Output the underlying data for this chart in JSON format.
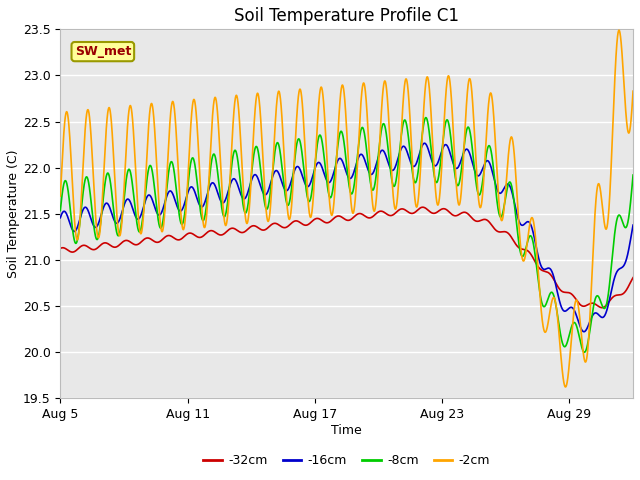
{
  "title": "Soil Temperature Profile C1",
  "xlabel": "Time",
  "ylabel": "Soil Temperature (C)",
  "ylim": [
    19.5,
    23.5
  ],
  "xlim_days": [
    0,
    27
  ],
  "xtick_labels": [
    "Aug 5",
    "Aug 11",
    "Aug 17",
    "Aug 23",
    "Aug 29"
  ],
  "xtick_positions": [
    0,
    6,
    12,
    18,
    24
  ],
  "background_color": "#ffffff",
  "plot_bg_color": "#e8e8e8",
  "grid_color": "#ffffff",
  "series": [
    {
      "label": "-32cm",
      "color": "#cc0000",
      "lw": 1.2
    },
    {
      "label": "-16cm",
      "color": "#0000cc",
      "lw": 1.2
    },
    {
      "label": "-8cm",
      "color": "#00cc00",
      "lw": 1.2
    },
    {
      "label": "-2cm",
      "color": "#ffa500",
      "lw": 1.2
    }
  ],
  "annotation_text": "SW_met",
  "annotation_color": "#990000",
  "annotation_bg": "#ffff99",
  "title_fontsize": 12,
  "axis_label_fontsize": 9,
  "tick_fontsize": 9,
  "legend_fontsize": 9
}
